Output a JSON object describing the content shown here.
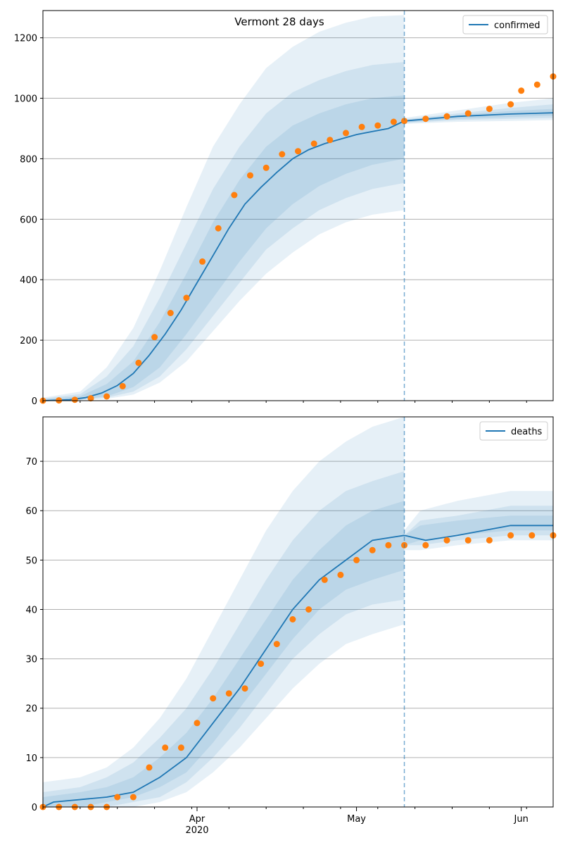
{
  "figure": {
    "title": "Vermont 28 days"
  },
  "colors": {
    "line": "#1f77b4",
    "band": "#1f77b4",
    "points": "#ff7f0e",
    "grid": "#b0b0b0",
    "divider": "#1f77b4"
  },
  "chart_data": [
    {
      "type": "line",
      "title": "Vermont 28 days",
      "legend": {
        "label": "confirmed",
        "placement": "top-right"
      },
      "xlabel": "",
      "ylabel": "",
      "x_range": [
        "2020-03-03",
        "2020-06-07"
      ],
      "ylim": [
        0,
        1290
      ],
      "yticks": [
        0,
        200,
        400,
        600,
        800,
        1000,
        1200
      ],
      "grid": "horizontal",
      "forecast_start": "2020-05-10",
      "series": [
        {
          "name": "confirmed",
          "role": "model",
          "x": [
            "2020-03-03",
            "2020-03-08",
            "2020-03-11",
            "2020-03-14",
            "2020-03-17",
            "2020-03-20",
            "2020-03-23",
            "2020-03-26",
            "2020-03-29",
            "2020-04-01",
            "2020-04-04",
            "2020-04-07",
            "2020-04-10",
            "2020-04-13",
            "2020-04-16",
            "2020-04-19",
            "2020-04-22",
            "2020-04-25",
            "2020-04-28",
            "2020-05-01",
            "2020-05-04",
            "2020-05-07",
            "2020-05-10",
            "2020-05-20",
            "2020-05-30",
            "2020-06-07"
          ],
          "values": [
            0,
            3,
            10,
            25,
            50,
            90,
            150,
            220,
            300,
            390,
            480,
            570,
            650,
            705,
            755,
            800,
            830,
            850,
            865,
            880,
            890,
            900,
            925,
            940,
            948,
            952
          ]
        },
        {
          "name": "confirmed",
          "role": "observed",
          "x": [
            "2020-03-03",
            "2020-03-06",
            "2020-03-09",
            "2020-03-12",
            "2020-03-15",
            "2020-03-18",
            "2020-03-21",
            "2020-03-24",
            "2020-03-27",
            "2020-03-30",
            "2020-04-02",
            "2020-04-05",
            "2020-04-08",
            "2020-04-11",
            "2020-04-14",
            "2020-04-17",
            "2020-04-20",
            "2020-04-23",
            "2020-04-26",
            "2020-04-29",
            "2020-05-02",
            "2020-05-05",
            "2020-05-08",
            "2020-05-10",
            "2020-05-14",
            "2020-05-18",
            "2020-05-22",
            "2020-05-26",
            "2020-05-30",
            "2020-06-01",
            "2020-06-04",
            "2020-06-07"
          ],
          "values": [
            0,
            1,
            3,
            8,
            14,
            48,
            125,
            210,
            290,
            340,
            460,
            570,
            680,
            745,
            770,
            815,
            825,
            850,
            862,
            885,
            905,
            910,
            922,
            925,
            932,
            940,
            950,
            965,
            980,
            1025,
            1045,
            1072
          ]
        }
      ],
      "bands_upper": [
        {
          "x": [
            "2020-03-03",
            "2020-03-10",
            "2020-03-15",
            "2020-03-20",
            "2020-03-25",
            "2020-03-30",
            "2020-04-04",
            "2020-04-09",
            "2020-04-14",
            "2020-04-19",
            "2020-04-24",
            "2020-04-29",
            "2020-05-04",
            "2020-05-10"
          ],
          "values": [
            10,
            30,
            110,
            240,
            430,
            640,
            840,
            980,
            1100,
            1170,
            1220,
            1250,
            1270,
            1275
          ]
        },
        {
          "x": [
            "2020-03-03",
            "2020-03-10",
            "2020-03-15",
            "2020-03-20",
            "2020-03-25",
            "2020-03-30",
            "2020-04-04",
            "2020-04-09",
            "2020-04-14",
            "2020-04-19",
            "2020-04-24",
            "2020-04-29",
            "2020-05-04",
            "2020-05-10"
          ],
          "values": [
            7,
            22,
            80,
            180,
            340,
            520,
            700,
            840,
            950,
            1020,
            1060,
            1090,
            1110,
            1120
          ]
        },
        {
          "x": [
            "2020-03-03",
            "2020-03-10",
            "2020-03-15",
            "2020-03-20",
            "2020-03-25",
            "2020-03-30",
            "2020-04-04",
            "2020-04-09",
            "2020-04-14",
            "2020-04-19",
            "2020-04-24",
            "2020-04-29",
            "2020-05-04",
            "2020-05-10"
          ],
          "values": [
            4,
            15,
            55,
            130,
            260,
            420,
            590,
            730,
            840,
            910,
            950,
            980,
            1000,
            1010
          ]
        }
      ],
      "bands_lower": [
        {
          "x": [
            "2020-03-03",
            "2020-03-10",
            "2020-03-15",
            "2020-03-20",
            "2020-03-25",
            "2020-03-30",
            "2020-04-04",
            "2020-04-09",
            "2020-04-14",
            "2020-04-19",
            "2020-04-24",
            "2020-04-29",
            "2020-05-04",
            "2020-05-10"
          ],
          "values": [
            0,
            2,
            6,
            20,
            60,
            130,
            230,
            330,
            420,
            490,
            550,
            590,
            615,
            630
          ]
        },
        {
          "x": [
            "2020-03-03",
            "2020-03-10",
            "2020-03-15",
            "2020-03-20",
            "2020-03-25",
            "2020-03-30",
            "2020-04-04",
            "2020-04-09",
            "2020-04-14",
            "2020-04-19",
            "2020-04-24",
            "2020-04-29",
            "2020-05-04",
            "2020-05-10"
          ],
          "values": [
            0,
            3,
            10,
            30,
            80,
            170,
            280,
            390,
            500,
            570,
            630,
            670,
            700,
            720
          ]
        },
        {
          "x": [
            "2020-03-03",
            "2020-03-10",
            "2020-03-15",
            "2020-03-20",
            "2020-03-25",
            "2020-03-30",
            "2020-04-04",
            "2020-04-09",
            "2020-04-14",
            "2020-04-19",
            "2020-04-24",
            "2020-04-29",
            "2020-05-04",
            "2020-05-10"
          ],
          "values": [
            0,
            4,
            14,
            45,
            110,
            220,
            340,
            460,
            570,
            650,
            710,
            750,
            780,
            800
          ]
        }
      ],
      "forecast_bands": [
        {
          "x": [
            "2020-05-10",
            "2020-05-20",
            "2020-05-30",
            "2020-06-07"
          ],
          "upper": [
            935,
            960,
            985,
            1000
          ],
          "lower": [
            915,
            922,
            925,
            928
          ]
        },
        {
          "x": [
            "2020-05-10",
            "2020-05-20",
            "2020-05-30",
            "2020-06-07"
          ],
          "upper": [
            930,
            950,
            968,
            980
          ],
          "lower": [
            918,
            928,
            932,
            935
          ]
        },
        {
          "x": [
            "2020-05-10",
            "2020-05-20",
            "2020-05-30",
            "2020-06-07"
          ],
          "upper": [
            928,
            945,
            958,
            965
          ],
          "lower": [
            920,
            932,
            938,
            942
          ]
        }
      ]
    },
    {
      "type": "line",
      "title": "",
      "legend": {
        "label": "deaths",
        "placement": "top-right"
      },
      "xlabel": "",
      "ylabel": "",
      "x_range": [
        "2020-03-03",
        "2020-06-07"
      ],
      "ylim": [
        0,
        79
      ],
      "yticks": [
        0,
        10,
        20,
        30,
        40,
        50,
        60,
        70
      ],
      "xticks": [
        {
          "date": "2020-04-01",
          "label": "Apr",
          "sublabel": "2020"
        },
        {
          "date": "2020-05-01",
          "label": "May",
          "sublabel": ""
        },
        {
          "date": "2020-06-01",
          "label": "Jun",
          "sublabel": ""
        }
      ],
      "grid": "horizontal",
      "forecast_start": "2020-05-10",
      "series": [
        {
          "name": "deaths",
          "role": "model",
          "x": [
            "2020-03-03",
            "2020-03-05",
            "2020-03-15",
            "2020-03-20",
            "2020-03-25",
            "2020-03-30",
            "2020-04-04",
            "2020-04-09",
            "2020-04-14",
            "2020-04-19",
            "2020-04-24",
            "2020-04-29",
            "2020-05-04",
            "2020-05-10",
            "2020-05-14",
            "2020-05-20",
            "2020-05-30",
            "2020-06-07"
          ],
          "values": [
            0,
            1,
            2,
            3,
            6,
            10,
            17,
            24,
            32,
            40,
            46,
            50,
            54,
            55,
            54,
            55,
            57,
            57
          ]
        },
        {
          "name": "deaths",
          "role": "observed",
          "x": [
            "2020-03-03",
            "2020-03-06",
            "2020-03-09",
            "2020-03-12",
            "2020-03-15",
            "2020-03-17",
            "2020-03-20",
            "2020-03-23",
            "2020-03-26",
            "2020-03-29",
            "2020-04-01",
            "2020-04-04",
            "2020-04-07",
            "2020-04-10",
            "2020-04-13",
            "2020-04-16",
            "2020-04-19",
            "2020-04-22",
            "2020-04-25",
            "2020-04-28",
            "2020-05-01",
            "2020-05-04",
            "2020-05-07",
            "2020-05-10",
            "2020-05-14",
            "2020-05-18",
            "2020-05-22",
            "2020-05-26",
            "2020-05-30",
            "2020-06-03",
            "2020-06-07"
          ],
          "values": [
            0,
            0,
            0,
            0,
            0,
            2,
            2,
            8,
            12,
            12,
            17,
            22,
            23,
            24,
            29,
            33,
            38,
            40,
            46,
            47,
            50,
            52,
            53,
            53,
            53,
            54,
            54,
            54,
            55,
            55,
            55
          ]
        }
      ],
      "bands_upper": [
        {
          "x": [
            "2020-03-03",
            "2020-03-10",
            "2020-03-15",
            "2020-03-20",
            "2020-03-25",
            "2020-03-30",
            "2020-04-04",
            "2020-04-09",
            "2020-04-14",
            "2020-04-19",
            "2020-04-24",
            "2020-04-29",
            "2020-05-04",
            "2020-05-10"
          ],
          "values": [
            5,
            6,
            8,
            12,
            18,
            26,
            36,
            46,
            56,
            64,
            70,
            74,
            77,
            79
          ]
        },
        {
          "x": [
            "2020-03-03",
            "2020-03-10",
            "2020-03-15",
            "2020-03-20",
            "2020-03-25",
            "2020-03-30",
            "2020-04-04",
            "2020-04-09",
            "2020-04-14",
            "2020-04-19",
            "2020-04-24",
            "2020-04-29",
            "2020-05-04",
            "2020-05-10"
          ],
          "values": [
            3,
            4,
            6,
            9,
            14,
            20,
            28,
            37,
            46,
            54,
            60,
            64,
            66,
            68
          ]
        },
        {
          "x": [
            "2020-03-03",
            "2020-03-10",
            "2020-03-15",
            "2020-03-20",
            "2020-03-25",
            "2020-03-30",
            "2020-04-04",
            "2020-04-09",
            "2020-04-14",
            "2020-04-19",
            "2020-04-24",
            "2020-04-29",
            "2020-05-04",
            "2020-05-10"
          ],
          "values": [
            2,
            3,
            4,
            6,
            10,
            15,
            22,
            30,
            38,
            46,
            52,
            57,
            60,
            62
          ]
        }
      ],
      "bands_lower": [
        {
          "x": [
            "2020-03-03",
            "2020-03-10",
            "2020-03-15",
            "2020-03-20",
            "2020-03-25",
            "2020-03-30",
            "2020-04-04",
            "2020-04-09",
            "2020-04-14",
            "2020-04-19",
            "2020-04-24",
            "2020-04-29",
            "2020-05-04",
            "2020-05-10"
          ],
          "values": [
            0,
            0,
            0,
            0,
            1,
            3,
            7,
            12,
            18,
            24,
            29,
            33,
            35,
            37
          ]
        },
        {
          "x": [
            "2020-03-03",
            "2020-03-10",
            "2020-03-15",
            "2020-03-20",
            "2020-03-25",
            "2020-03-30",
            "2020-04-04",
            "2020-04-09",
            "2020-04-14",
            "2020-04-19",
            "2020-04-24",
            "2020-04-29",
            "2020-05-04",
            "2020-05-10"
          ],
          "values": [
            0,
            0,
            0,
            1,
            2,
            5,
            10,
            16,
            23,
            30,
            35,
            39,
            41,
            42
          ]
        },
        {
          "x": [
            "2020-03-03",
            "2020-03-10",
            "2020-03-15",
            "2020-03-20",
            "2020-03-25",
            "2020-03-30",
            "2020-04-04",
            "2020-04-09",
            "2020-04-14",
            "2020-04-19",
            "2020-04-24",
            "2020-04-29",
            "2020-05-04",
            "2020-05-10"
          ],
          "values": [
            0,
            0,
            1,
            2,
            4,
            7,
            13,
            20,
            27,
            34,
            40,
            44,
            46,
            48
          ]
        }
      ],
      "forecast_bands": [
        {
          "x": [
            "2020-05-10",
            "2020-05-13",
            "2020-05-20",
            "2020-05-30",
            "2020-06-07"
          ],
          "upper": [
            56,
            60,
            62,
            64,
            64
          ],
          "lower": [
            52,
            52,
            53,
            54,
            54
          ]
        },
        {
          "x": [
            "2020-05-10",
            "2020-05-13",
            "2020-05-20",
            "2020-05-30",
            "2020-06-07"
          ],
          "upper": [
            55,
            58,
            59,
            61,
            61
          ],
          "lower": [
            53,
            53,
            54,
            55,
            55
          ]
        },
        {
          "x": [
            "2020-05-10",
            "2020-05-13",
            "2020-05-20",
            "2020-05-30",
            "2020-06-07"
          ],
          "upper": [
            55,
            57,
            58,
            59,
            59
          ],
          "lower": [
            53,
            54,
            55,
            56,
            56
          ]
        }
      ]
    }
  ]
}
